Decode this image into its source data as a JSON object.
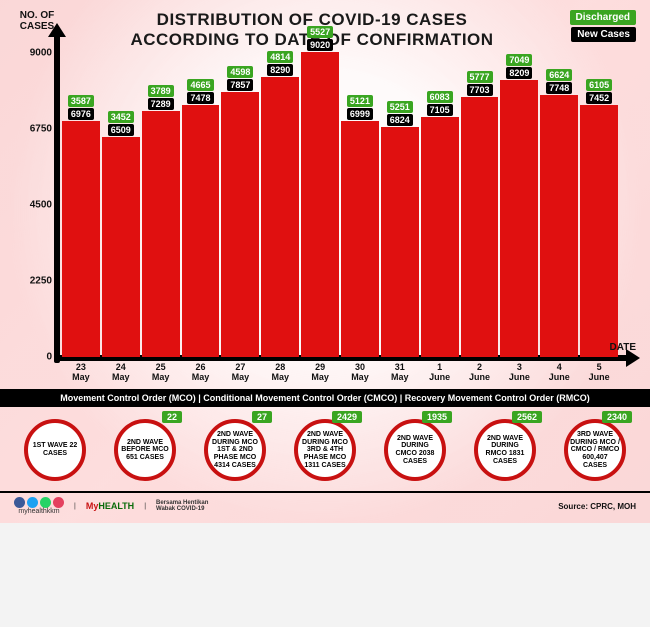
{
  "title_line1": "DISTRIBUTION OF COVID-19 CASES",
  "title_line2": "ACCORDING TO DATE OF CONFIRMATION",
  "ylabel_line1": "NO. OF",
  "ylabel_line2": "CASES",
  "xlabel": "DATE",
  "legend": {
    "discharged": {
      "label": "Discharged",
      "color": "#3aa521"
    },
    "new_cases": {
      "label": "New Cases",
      "color": "#000000"
    }
  },
  "yaxis": {
    "min": 0,
    "max": 9000,
    "ticks": [
      0,
      2250,
      4500,
      6750,
      9000
    ]
  },
  "colors": {
    "bar": "#e01010",
    "discharged_badge": "#3aa521",
    "new_badge": "#000000",
    "axis": "#000000",
    "background": "#f5e6e6"
  },
  "bars": [
    {
      "day": "23",
      "month": "May",
      "discharged": 3587,
      "new_cases": 6976
    },
    {
      "day": "24",
      "month": "May",
      "discharged": 3452,
      "new_cases": 6509
    },
    {
      "day": "25",
      "month": "May",
      "discharged": 3789,
      "new_cases": 7289
    },
    {
      "day": "26",
      "month": "May",
      "discharged": 4665,
      "new_cases": 7478
    },
    {
      "day": "27",
      "month": "May",
      "discharged": 4598,
      "new_cases": 7857
    },
    {
      "day": "28",
      "month": "May",
      "discharged": 4814,
      "new_cases": 8290
    },
    {
      "day": "29",
      "month": "May",
      "discharged": 5527,
      "new_cases": 9020
    },
    {
      "day": "30",
      "month": "May",
      "discharged": 5121,
      "new_cases": 6999
    },
    {
      "day": "31",
      "month": "May",
      "discharged": 5251,
      "new_cases": 6824
    },
    {
      "day": "1",
      "month": "June",
      "discharged": 6083,
      "new_cases": 7105
    },
    {
      "day": "2",
      "month": "June",
      "discharged": 5777,
      "new_cases": 7703
    },
    {
      "day": "3",
      "month": "June",
      "discharged": 7049,
      "new_cases": 8209
    },
    {
      "day": "4",
      "month": "June",
      "discharged": 6624,
      "new_cases": 7748
    },
    {
      "day": "5",
      "month": "June",
      "discharged": 6105,
      "new_cases": 7452
    }
  ],
  "control_orders_text": "Movement Control Order (MCO) | Conditional Movement Control Order (CMCO) | Recovery Movement Control Order (RMCO)",
  "waves": [
    {
      "text": "1ST WAVE 22 CASES",
      "badge": null
    },
    {
      "text": "2ND WAVE BEFORE MCO 651 CASES",
      "badge": 22
    },
    {
      "text": "2ND WAVE DURING MCO 1ST & 2ND PHASE MCO 4314 CASES",
      "badge": 27
    },
    {
      "text": "2ND WAVE DURING MCO 3RD & 4TH PHASE MCO 1311 CASES",
      "badge": 2429
    },
    {
      "text": "2ND WAVE DURING CMCO 2038 CASES",
      "badge": 1935
    },
    {
      "text": "2ND WAVE DURING RMCO 1831 CASES",
      "badge": 2562
    },
    {
      "text": "3RD WAVE DURING MCO / CMCO / RMCO 600,407 CASES",
      "badge": 2340
    }
  ],
  "footer": {
    "site": "myhealthkkm",
    "source": "Source: CPRC, MOH",
    "social_colors": [
      "#3b5998",
      "#1da1f2",
      "#25d366",
      "#e4405f"
    ],
    "logo1": "MyHEALTH",
    "logo2": "Bersama Hentikan Wabak COVID-19"
  }
}
